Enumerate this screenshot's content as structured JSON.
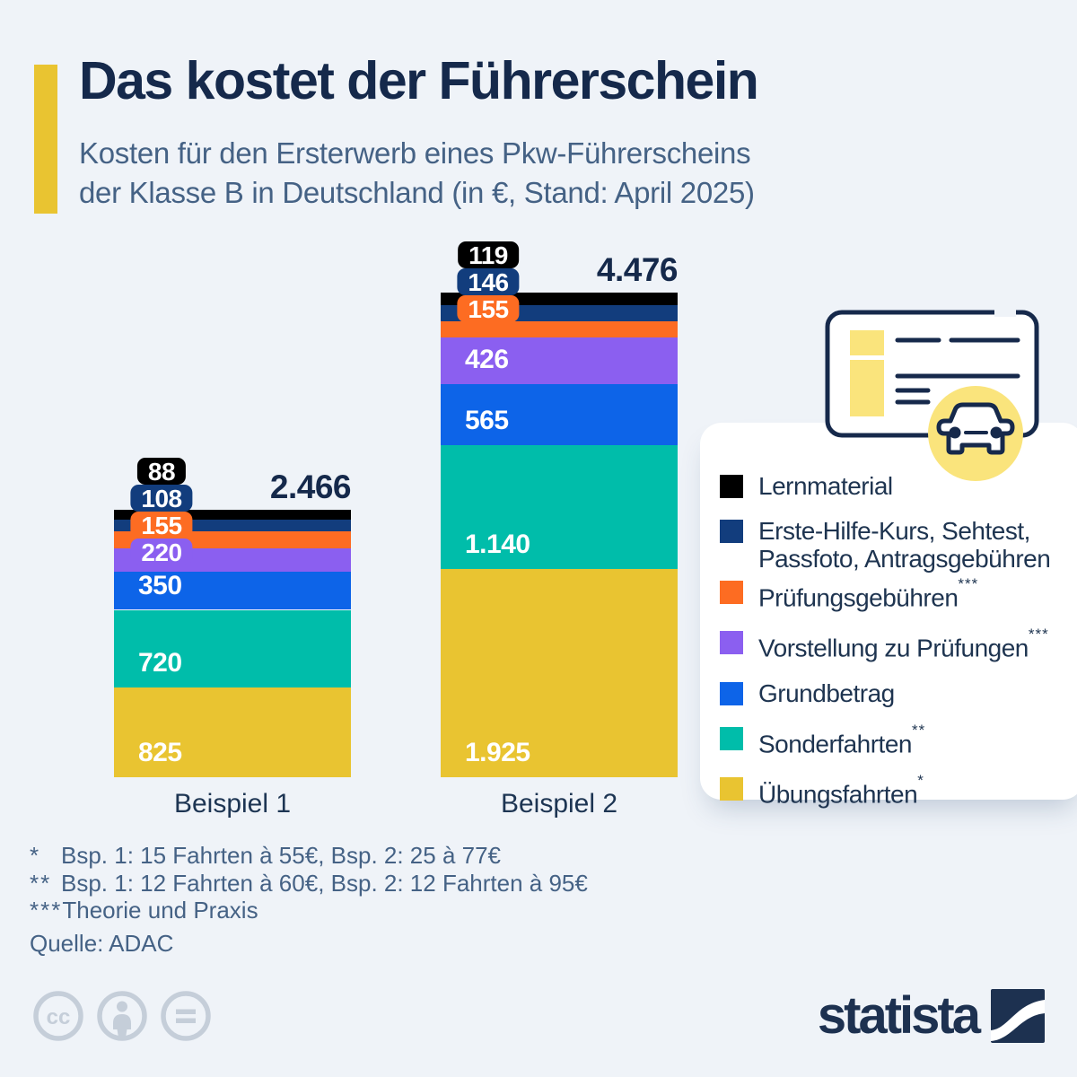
{
  "header": {
    "title": "Das kostet der Führerschein",
    "subtitle_line1": "Kosten für den Ersterwerb eines Pkw-Führerscheins",
    "subtitle_line2": "der Klasse B in Deutschland (in €, Stand: April 2025)"
  },
  "chart_data": {
    "type": "bar",
    "stacked": true,
    "unit": "€",
    "grid": false,
    "legend_position": "right",
    "categories": [
      "Beispiel 1",
      "Beispiel 2"
    ],
    "series": [
      {
        "name": "Lernmaterial",
        "color": "#000000",
        "values": [
          88,
          119
        ],
        "labels": [
          "88",
          "119"
        ]
      },
      {
        "name": "Erste-Hilfe-Kurs, Sehtest, Passfoto, Antragsgebühren",
        "color": "#123d7d",
        "values": [
          108,
          146
        ],
        "labels": [
          "108",
          "146"
        ]
      },
      {
        "name": "Prüfungsgebühren",
        "color": "#fd6c22",
        "values": [
          155,
          155
        ],
        "labels": [
          "155",
          "155"
        ]
      },
      {
        "name": "Vorstellung zu Prüfungen",
        "color": "#8b5ff0",
        "values": [
          220,
          426
        ],
        "labels": [
          "220",
          "426"
        ]
      },
      {
        "name": "Grundbetrag",
        "color": "#0d64e8",
        "values": [
          350,
          565
        ],
        "labels": [
          "350",
          "565"
        ]
      },
      {
        "name": "Sonderfahrten",
        "color": "#00bdaa",
        "values": [
          720,
          1140
        ],
        "labels": [
          "720",
          "1.140"
        ]
      },
      {
        "name": "Übungsfahrten",
        "color": "#e9c431",
        "values": [
          825,
          1925
        ],
        "labels": [
          "825",
          "1.925"
        ]
      }
    ],
    "totals": [
      2466,
      4476
    ],
    "total_labels": [
      "2.466",
      "4.476"
    ]
  },
  "legend": {
    "items": [
      {
        "label": "Lernmaterial",
        "sup": "",
        "color": "#000000"
      },
      {
        "label": "Erste-Hilfe-Kurs, Sehtest, Passfoto, Antragsgebühren",
        "sup": "",
        "color": "#123d7d"
      },
      {
        "label": "Prüfungsgebühren",
        "sup": "***",
        "color": "#fd6c22"
      },
      {
        "label": "Vorstellung zu Prüfungen",
        "sup": "***",
        "color": "#8b5ff0"
      },
      {
        "label": "Grundbetrag",
        "sup": "",
        "color": "#0d64e8"
      },
      {
        "label": "Sonderfahrten",
        "sup": "**",
        "color": "#00bdaa"
      },
      {
        "label": "Übungsfahrten",
        "sup": "*",
        "color": "#e9c431"
      }
    ]
  },
  "footnotes": [
    {
      "marker": "*",
      "text": "Bsp. 1: 15 Fahrten à 55€, Bsp. 2: 25 à 77€"
    },
    {
      "marker": "**",
      "text": "Bsp. 1: 12 Fahrten à 60€, Bsp. 2: 12 Fahrten à 95€"
    },
    {
      "marker": "***",
      "text": "Theorie und Praxis"
    }
  ],
  "source": "Quelle: ADAC",
  "branding": {
    "wordmark": "statista"
  },
  "colors": {
    "accent": "#e9c431",
    "background": "#eff3f8",
    "title_text": "#15294b",
    "body_text": "#456285",
    "legend_text": "#1e3450",
    "license_yellow": "#fae47c",
    "outline_navy": "#16294b",
    "cc_gray": "#c5ced9"
  }
}
